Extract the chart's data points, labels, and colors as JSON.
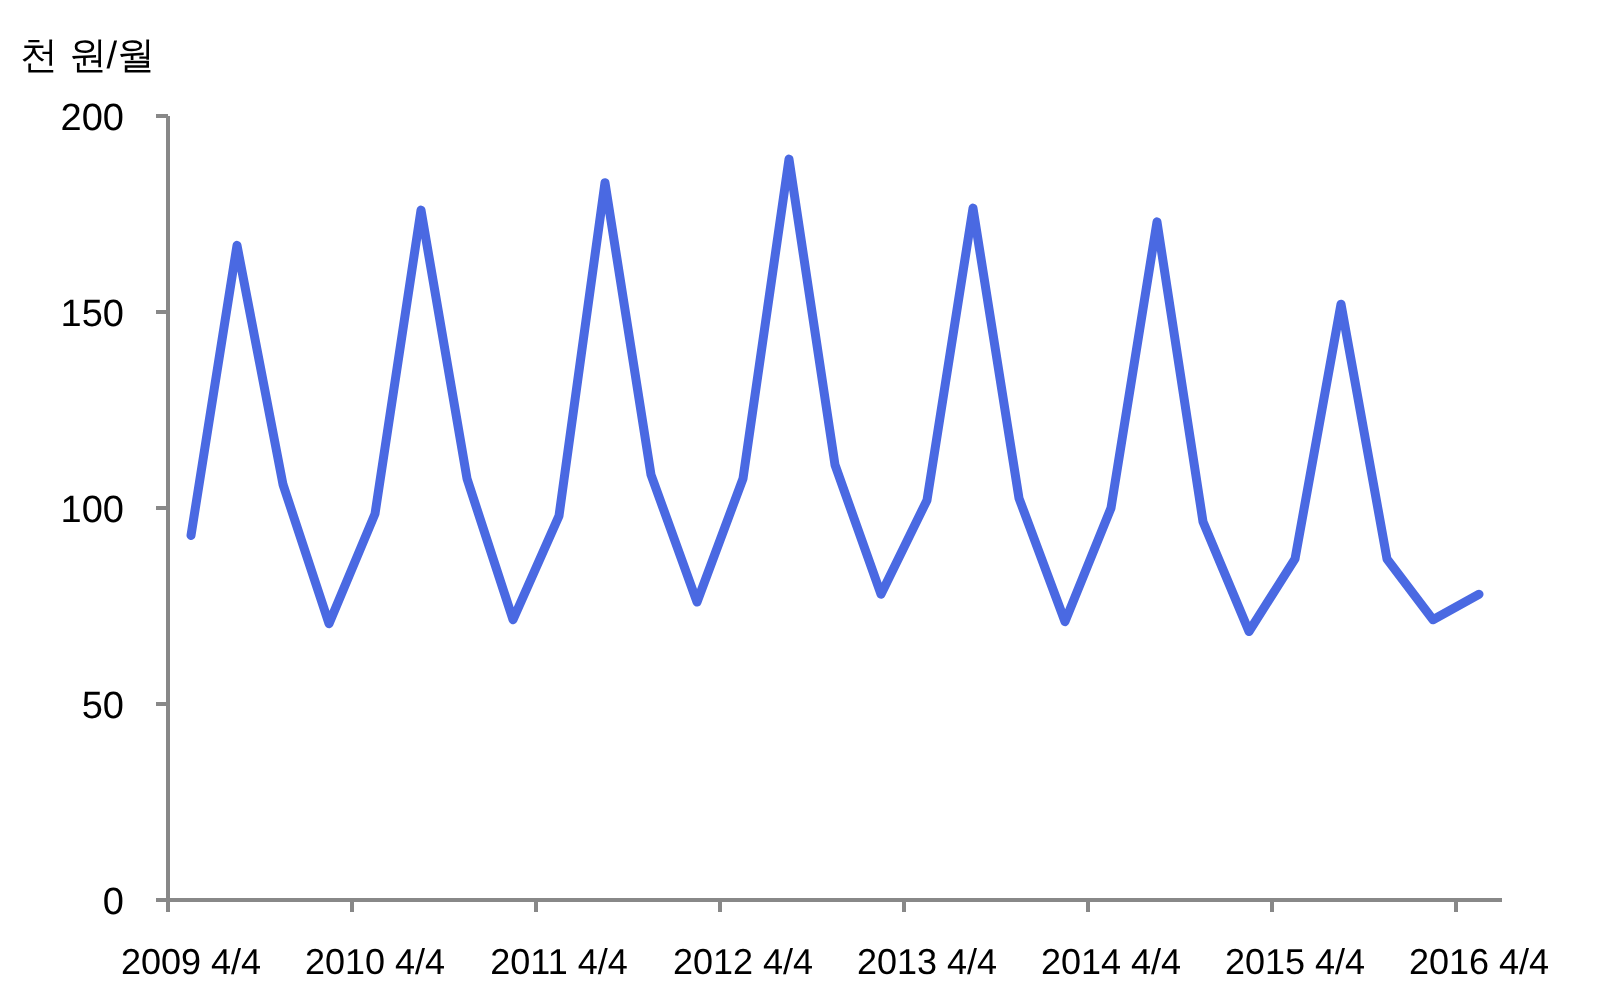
{
  "chart_data": {
    "type": "line",
    "ylabel": "천 원/월",
    "categories": [
      "2009 4/4",
      null,
      null,
      null,
      "2010 4/4",
      null,
      null,
      null,
      "2011 4/4",
      null,
      null,
      null,
      "2012 4/4",
      null,
      null,
      null,
      "2013 4/4",
      null,
      null,
      null,
      "2014 4/4",
      null,
      null,
      null,
      "2015 4/4",
      null,
      null,
      null,
      "2016 4/4"
    ],
    "color": "#4a69e2",
    "values": [
      93,
      167,
      106,
      70.5,
      98.5,
      176,
      107.5,
      71.5,
      98,
      183,
      108.5,
      76,
      107.5,
      189,
      111,
      78,
      102,
      176.5,
      102.5,
      71,
      100,
      173,
      96.5,
      68.5,
      87,
      152,
      87,
      71.5,
      78
    ],
    "ylim": [
      0,
      200
    ],
    "yticks": [
      0,
      50,
      100,
      150,
      200
    ],
    "grid": false
  }
}
